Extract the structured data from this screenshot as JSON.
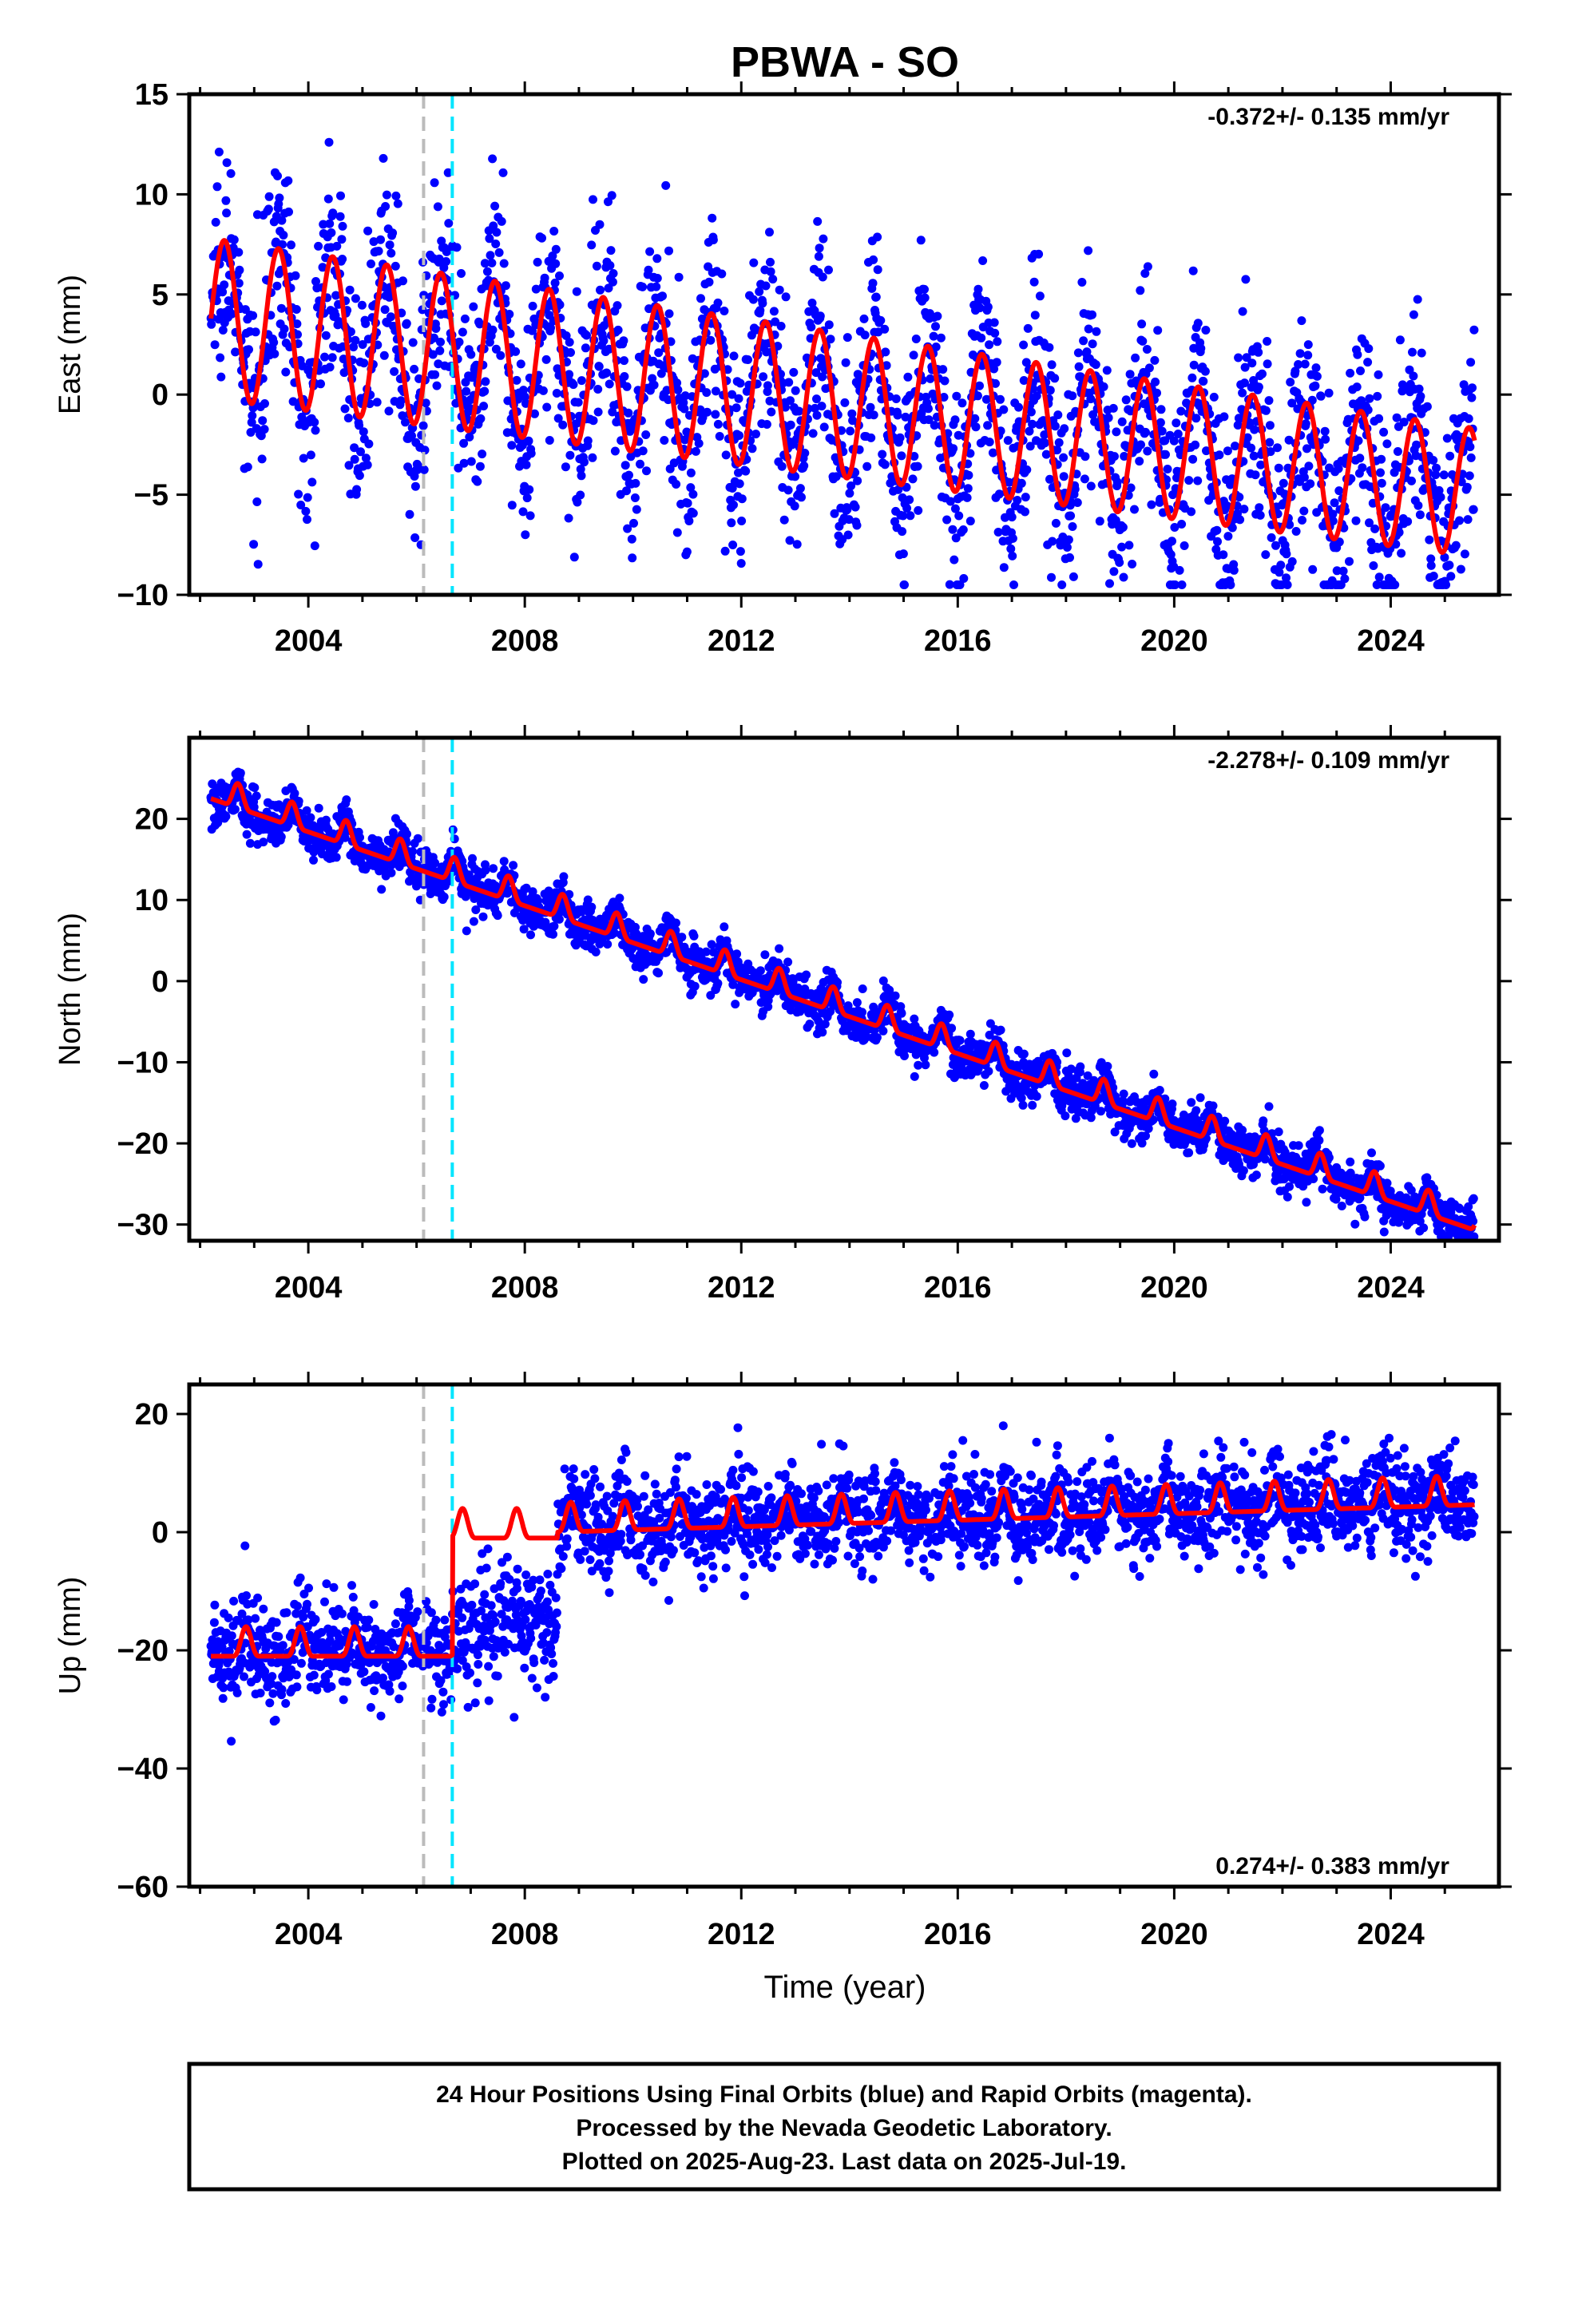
{
  "title": "PBWA - SO",
  "xlabel": "Time (year)",
  "footer": {
    "line1": "24 Hour Positions Using Final Orbits (blue) and Rapid Orbits (magenta).",
    "line2": "Processed by the Nevada Geodetic Laboratory.",
    "line3": "Plotted on 2025-Aug-23. Last data on 2025-Jul-19."
  },
  "colors": {
    "data": "#0000ff",
    "model": "#ff0000",
    "event_gray": "#bbbbbb",
    "event_cyan": "#00e5ff",
    "axis": "#000000"
  },
  "chart_data": [
    {
      "type": "scatter",
      "id": "east",
      "ylabel": "East (mm)",
      "rate_label": "-0.372+/- 0.135 mm/yr",
      "xlim": [
        2001.8,
        2026.0
      ],
      "ylim": [
        -10,
        15
      ],
      "xticks": [
        "2004",
        "2008",
        "2012",
        "2016",
        "2020",
        "2024"
      ],
      "yticks": [
        "−10",
        "−5",
        "0",
        "5",
        "10",
        "15"
      ],
      "vlines": [
        {
          "x": 2006.13,
          "color": "gray"
        },
        {
          "x": 2006.66,
          "color": "cyan"
        }
      ],
      "model": {
        "offset": 3.8,
        "rate": -0.372,
        "seasonal_amp": [
          4.0,
          3.6,
          3.2
        ],
        "phase_year": 2002.45,
        "noise_mm": 2.6
      },
      "series": [
        {
          "name": "Final Orbits",
          "x_range": [
            2002.2,
            2025.55
          ]
        }
      ]
    },
    {
      "type": "scatter",
      "id": "north",
      "ylabel": "North (mm)",
      "rate_label": "-2.278+/- 0.109 mm/yr",
      "xlim": [
        2001.8,
        2026.0
      ],
      "ylim": [
        -32,
        30
      ],
      "xticks": [
        "2004",
        "2008",
        "2012",
        "2016",
        "2020",
        "2024"
      ],
      "yticks": [
        "−30",
        "−20",
        "−10",
        "0",
        "10",
        "20"
      ],
      "vlines": [
        {
          "x": 2006.13,
          "color": "gray"
        },
        {
          "x": 2006.66,
          "color": "cyan"
        }
      ],
      "model": {
        "offset": 22.5,
        "rate": -2.278,
        "seasonal_amp": [
          1.5,
          1.5,
          1.5
        ],
        "phase_year": 2002.45,
        "noise_mm": 1.4
      },
      "series": [
        {
          "name": "Final Orbits",
          "x_range": [
            2002.2,
            2025.55
          ]
        }
      ]
    },
    {
      "type": "scatter",
      "id": "up",
      "ylabel": "Up (mm)",
      "rate_label": "0.274+/- 0.383 mm/yr",
      "xlim": [
        2001.8,
        2026.0
      ],
      "ylim": [
        -60,
        25
      ],
      "xticks": [
        "2004",
        "2008",
        "2012",
        "2016",
        "2020",
        "2024"
      ],
      "yticks": [
        "−60",
        "−40",
        "−20",
        "0",
        "20"
      ],
      "vlines": [
        {
          "x": 2006.13,
          "color": "gray"
        },
        {
          "x": 2006.66,
          "color": "cyan"
        }
      ],
      "steps": [
        {
          "x": 2006.66,
          "level_before": -21,
          "level_after": -1
        },
        {
          "x": 2008.6,
          "level_after": 0
        }
      ],
      "model": {
        "offset": -21,
        "rate": 0.274,
        "seasonal_amp": [
          2.5,
          2.5,
          2.5
        ],
        "phase_year": 2002.6,
        "noise_mm": 4.0
      },
      "series": [
        {
          "name": "Final Orbits",
          "x_range": [
            2002.2,
            2025.55
          ]
        }
      ]
    }
  ]
}
